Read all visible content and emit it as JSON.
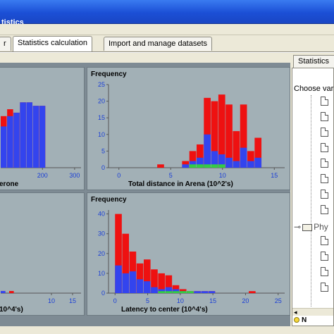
{
  "window": {
    "title": "tistics"
  },
  "tabs": [
    {
      "label": "r"
    },
    {
      "label": "Statistics calculation"
    },
    {
      "label": "Import and manage datasets"
    }
  ],
  "colors": {
    "series_a": "#ee1111",
    "series_b": "#3344ee",
    "series_c": "#33cc44"
  },
  "charts": [
    {
      "freq_label": "",
      "xlabel": "erone",
      "x_ticks": [
        {
          "v": 200,
          "label": "200"
        },
        {
          "v": 300,
          "label": "300"
        }
      ],
      "y_ticks": [],
      "xlim": [
        70,
        320
      ],
      "ylim": [
        0,
        25
      ],
      "bars": [
        {
          "x": 70,
          "a": 15,
          "b": 12,
          "c": 0
        },
        {
          "x": 90,
          "a": 17,
          "b": 15,
          "c": 0
        },
        {
          "x": 110,
          "a": 16,
          "b": 16,
          "c": 0
        },
        {
          "x": 130,
          "a": 19,
          "b": 19,
          "c": 0
        },
        {
          "x": 150,
          "a": 19,
          "b": 19,
          "c": 0
        },
        {
          "x": 170,
          "a": 18,
          "b": 18,
          "c": 0
        },
        {
          "x": 190,
          "a": 18,
          "b": 18,
          "c": 0
        }
      ],
      "bar_width": 20
    },
    {
      "freq_label": "Frequency",
      "xlabel": "Total distance in Arena (10^2's)",
      "x_ticks": [
        {
          "v": 0,
          "label": "0"
        },
        {
          "v": 5,
          "label": "5"
        },
        {
          "v": 10,
          "label": "10"
        },
        {
          "v": 15,
          "label": "15"
        }
      ],
      "y_ticks": [
        {
          "v": 0,
          "label": "0"
        },
        {
          "v": 5,
          "label": "5"
        },
        {
          "v": 10,
          "label": "10"
        },
        {
          "v": 15,
          "label": "15"
        },
        {
          "v": 20,
          "label": "20"
        },
        {
          "v": 25,
          "label": "25"
        }
      ],
      "xlim": [
        -1,
        16
      ],
      "ylim": [
        0,
        25
      ],
      "bars": [
        {
          "x": 3.7,
          "a": 1,
          "b": 0,
          "c": 0
        },
        {
          "x": 6.1,
          "a": 2,
          "b": 1,
          "c": 0
        },
        {
          "x": 6.8,
          "a": 5,
          "b": 2,
          "c": 1
        },
        {
          "x": 7.5,
          "a": 7,
          "b": 3,
          "c": 1
        },
        {
          "x": 8.2,
          "a": 21,
          "b": 10,
          "c": 1
        },
        {
          "x": 8.9,
          "a": 20,
          "b": 5,
          "c": 1
        },
        {
          "x": 9.6,
          "a": 22,
          "b": 4,
          "c": 1
        },
        {
          "x": 10.3,
          "a": 19,
          "b": 3,
          "c": 0
        },
        {
          "x": 11.0,
          "a": 11,
          "b": 2,
          "c": 0
        },
        {
          "x": 11.7,
          "a": 19,
          "b": 6,
          "c": 0
        },
        {
          "x": 12.4,
          "a": 5,
          "b": 2,
          "c": 0
        },
        {
          "x": 13.1,
          "a": 9,
          "b": 3,
          "c": 0
        }
      ],
      "bar_width": 0.7
    },
    {
      "freq_label": "",
      "xlabel": "10^4's)",
      "x_ticks": [
        {
          "v": 10,
          "label": "10"
        },
        {
          "v": 15,
          "label": "15"
        }
      ],
      "y_ticks": [],
      "xlim": [
        -2,
        17
      ],
      "ylim": [
        0,
        40
      ],
      "bars": [
        {
          "x": -2,
          "a": 1,
          "b": 1,
          "c": 0
        },
        {
          "x": 0,
          "a": 1,
          "b": 0,
          "c": 0
        }
      ],
      "bar_width": 1.2
    },
    {
      "freq_label": "Frequency",
      "xlabel": "Latency to center (10^4's)",
      "x_ticks": [
        {
          "v": 0,
          "label": "0"
        },
        {
          "v": 5,
          "label": "5"
        },
        {
          "v": 10,
          "label": "10"
        },
        {
          "v": 15,
          "label": "15"
        },
        {
          "v": 20,
          "label": "20"
        },
        {
          "v": 25,
          "label": "25"
        }
      ],
      "y_ticks": [
        {
          "v": 0,
          "label": "0"
        },
        {
          "v": 10,
          "label": "10"
        },
        {
          "v": 20,
          "label": "20"
        },
        {
          "v": 30,
          "label": "30"
        },
        {
          "v": 40,
          "label": "40"
        }
      ],
      "xlim": [
        -1,
        26
      ],
      "ylim": [
        0,
        42
      ],
      "bars": [
        {
          "x": 0,
          "a": 40,
          "b": 14,
          "c": 0
        },
        {
          "x": 1.1,
          "a": 30,
          "b": 10,
          "c": 0
        },
        {
          "x": 2.2,
          "a": 21,
          "b": 11,
          "c": 0
        },
        {
          "x": 3.3,
          "a": 15,
          "b": 7,
          "c": 0
        },
        {
          "x": 4.4,
          "a": 17,
          "b": 6,
          "c": 0
        },
        {
          "x": 5.5,
          "a": 12,
          "b": 3,
          "c": 0
        },
        {
          "x": 6.6,
          "a": 10,
          "b": 2,
          "c": 1
        },
        {
          "x": 7.7,
          "a": 9,
          "b": 3,
          "c": 1
        },
        {
          "x": 8.8,
          "a": 4,
          "b": 2,
          "c": 1
        },
        {
          "x": 9.9,
          "a": 2,
          "b": 1,
          "c": 1
        },
        {
          "x": 11.0,
          "a": 1,
          "b": 0,
          "c": 1
        },
        {
          "x": 12.1,
          "a": 1,
          "b": 1,
          "c": 0
        },
        {
          "x": 13.2,
          "a": 1,
          "b": 1,
          "c": 0
        },
        {
          "x": 14.3,
          "a": 1,
          "b": 1,
          "c": 0
        },
        {
          "x": 20.5,
          "a": 1,
          "b": 0,
          "c": 0
        }
      ],
      "bar_width": 1.1
    }
  ],
  "side_panel": {
    "tab_label": "Statistics",
    "choose_label": "Choose var",
    "group_label": "Phy",
    "bottom_label": "N",
    "scroll_left_icon": "arrow-left-icon"
  }
}
